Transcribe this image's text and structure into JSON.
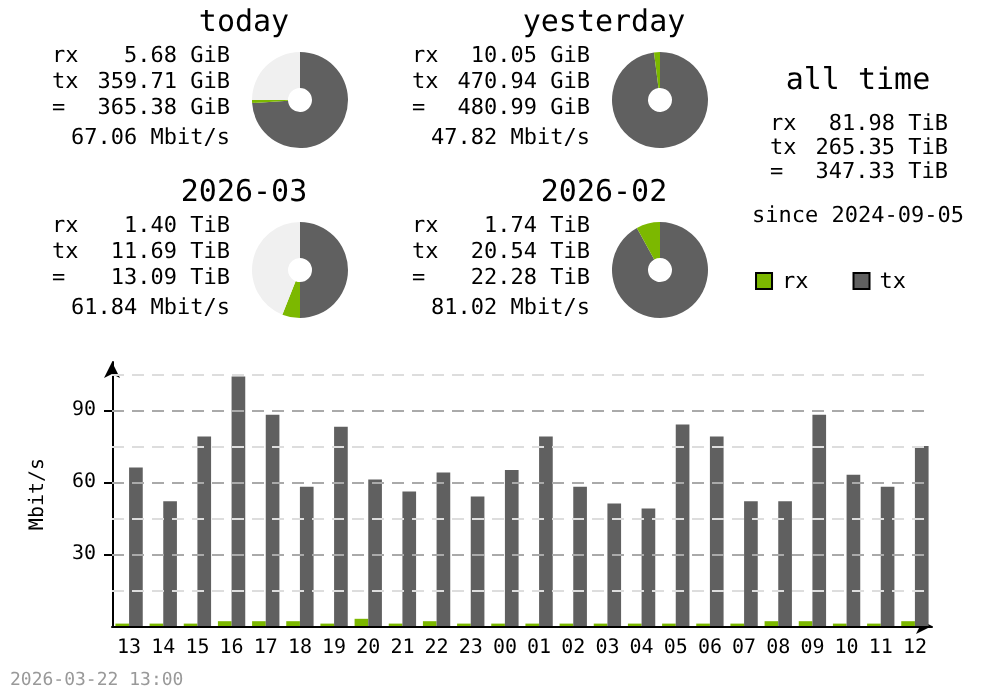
{
  "chart_data": [
    {
      "type": "donut",
      "title": "today",
      "categories": [
        null,
        null,
        null
      ],
      "values": [
        74,
        1,
        25
      ],
      "colors": [
        "#606060",
        "#7cb800",
        "#f0f0f0"
      ],
      "annotations": [
        "rx",
        "5.68 GiB",
        "tx",
        "359.71 GiB",
        "=",
        "365.38 GiB",
        "67.06 Mbit/s"
      ]
    },
    {
      "type": "donut",
      "title": "yesterday",
      "categories": [
        null,
        null,
        null
      ],
      "values": [
        98,
        2,
        0
      ],
      "colors": [
        "#606060",
        "#7cb800",
        "#f0f0f0"
      ],
      "annotations": [
        "rx",
        "10.05 GiB",
        "tx",
        "470.94 GiB",
        "=",
        "480.99 GiB",
        "47.82 Mbit/s"
      ]
    },
    {
      "type": "donut",
      "title": "2026-03",
      "categories": [
        null,
        null,
        null
      ],
      "values": [
        50,
        6,
        44
      ],
      "colors": [
        "#606060",
        "#7cb800",
        "#f0f0f0"
      ],
      "annotations": [
        "rx",
        "1.40 TiB",
        "tx",
        "11.69 TiB",
        "=",
        "13.09 TiB",
        "61.84 Mbit/s"
      ]
    },
    {
      "type": "donut",
      "title": "2026-02",
      "categories": [
        null,
        null,
        null
      ],
      "values": [
        92,
        8,
        0
      ],
      "colors": [
        "#606060",
        "#7cb800",
        "#f0f0f0"
      ],
      "annotations": [
        "rx",
        "1.74 TiB",
        "tx",
        "20.54 TiB",
        "=",
        "22.28 TiB",
        "81.02 Mbit/s"
      ]
    },
    {
      "type": "other",
      "title": "all time",
      "annotations": [
        "rx",
        "81.98 TiB",
        "tx",
        "265.35 TiB",
        "=",
        "347.33 TiB",
        "since 2024-09-05"
      ]
    },
    {
      "type": "bar",
      "ylabel": "Mbit/s",
      "legend": "top right",
      "grid": "y",
      "categories": [
        "13",
        "14",
        "15",
        "16",
        "17",
        "18",
        "19",
        "20",
        "21",
        "22",
        "23",
        "00",
        "01",
        "02",
        "03",
        "04",
        "05",
        "06",
        "07",
        "08",
        "09",
        "10",
        "11",
        "12"
      ],
      "series": [
        {
          "name": "rx",
          "color": "#7cb800",
          "values": [
            1,
            1,
            1,
            2,
            2,
            2,
            1,
            3,
            1,
            2,
            1,
            1,
            1,
            1,
            1,
            1,
            1,
            1,
            1,
            2,
            2,
            1,
            1,
            2
          ]
        },
        {
          "name": "tx",
          "color": "#606060",
          "values": [
            66,
            52,
            79,
            104,
            88,
            58,
            83,
            61,
            56,
            64,
            54,
            65,
            79,
            58,
            51,
            49,
            84,
            79,
            52,
            52,
            88,
            63,
            58,
            75
          ]
        }
      ],
      "ylim": [
        0,
        110
      ],
      "yticks": [
        {
          "value": 0,
          "label": null
        },
        {
          "value": 15,
          "label": null
        },
        30,
        {
          "value": 45,
          "label": null
        },
        60,
        {
          "value": 75,
          "label": null
        },
        90,
        {
          "value": 105,
          "label": null
        }
      ],
      "annotations": [
        "2026-03-22 13:00"
      ]
    }
  ]
}
